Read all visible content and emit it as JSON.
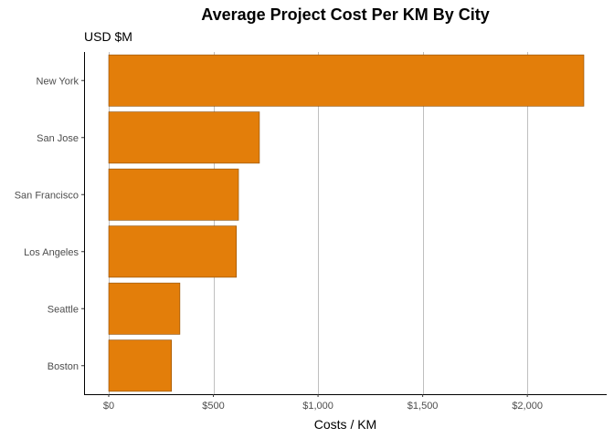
{
  "chart_data": {
    "type": "bar",
    "orientation": "horizontal",
    "title": "Average Project Cost Per KM By City",
    "unit_label": "USD $M",
    "xlabel": "Costs / KM",
    "ylabel": "",
    "categories": [
      "New York",
      "San Jose",
      "San Francisco",
      "Los Angeles",
      "Seattle",
      "Boston"
    ],
    "values": [
      2270,
      720,
      620,
      610,
      340,
      300
    ],
    "xlim": [
      0,
      2270
    ],
    "x_ticks": [
      0,
      500,
      1000,
      1500,
      2000
    ],
    "x_tick_labels": [
      "$0",
      "$500",
      "$1,000",
      "$1,500",
      "$2,000"
    ],
    "grid": "vertical major",
    "bar_color": "#e37e0a",
    "bar_edge_color": "#8a4a00"
  }
}
